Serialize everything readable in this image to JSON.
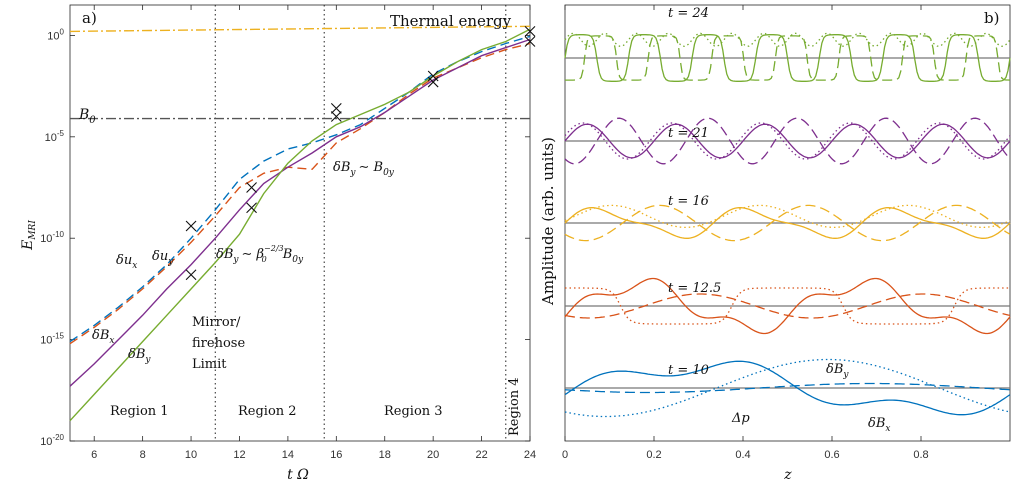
{
  "chart_data": [
    {
      "panel": "a)",
      "type": "line",
      "xlabel": "t Ω",
      "ylabel": "E_MRI",
      "xlim": [
        5,
        24
      ],
      "ylog": true,
      "ylim_log10": [
        -20,
        1.5
      ],
      "xticks": [
        "6",
        "8",
        "10",
        "12",
        "14",
        "16",
        "18",
        "20",
        "22",
        "24"
      ],
      "yticks": [
        {
          "label": "10^0",
          "base": "10",
          "exp": "0",
          "v": 0
        },
        {
          "label": "10^-5",
          "base": "10",
          "exp": "-5",
          "v": -5
        },
        {
          "label": "10^-10",
          "base": "10",
          "exp": "-10",
          "v": -10
        },
        {
          "label": "10^-15",
          "base": "10",
          "exp": "-15",
          "v": -15
        },
        {
          "label": "10^-20",
          "base": "10",
          "exp": "-20",
          "v": -20
        }
      ],
      "series": [
        {
          "name": "δu_x",
          "color": "#0072BD",
          "dash": "9,5",
          "x": [
            5,
            6,
            7,
            8,
            9,
            10,
            11,
            12,
            13,
            14,
            15,
            16,
            17,
            18,
            19,
            20,
            21,
            22,
            23,
            24
          ],
          "log10y": [
            -15.1,
            -14.3,
            -13.4,
            -12.4,
            -11.3,
            -10.0,
            -8.6,
            -7.1,
            -6.2,
            -5.6,
            -5.3,
            -4.9,
            -4.4,
            -3.6,
            -2.8,
            -1.9,
            -1.3,
            -0.8,
            -0.4,
            -0.05
          ]
        },
        {
          "name": "δu_y",
          "color": "#D95319",
          "dash": "9,5",
          "x": [
            5,
            6,
            7,
            8,
            9,
            10,
            11,
            12,
            13,
            14,
            15,
            16,
            17,
            18,
            19,
            20,
            21,
            22,
            23,
            24
          ],
          "log10y": [
            -15.2,
            -14.4,
            -13.5,
            -12.5,
            -11.4,
            -10.2,
            -8.9,
            -7.5,
            -6.8,
            -6.5,
            -6.6,
            -5.3,
            -4.6,
            -3.8,
            -2.9,
            -2.1,
            -1.6,
            -1.1,
            -0.7,
            -0.4
          ]
        },
        {
          "name": "δB_x",
          "color": "#7E2F8E",
          "dash": "",
          "x": [
            5,
            6,
            7,
            8,
            9,
            10,
            11,
            12,
            13,
            14,
            15,
            16,
            17,
            18,
            19,
            20,
            21,
            22,
            23,
            24
          ],
          "log10y": [
            -17.3,
            -16.2,
            -15.0,
            -13.8,
            -12.5,
            -11.3,
            -10.0,
            -8.6,
            -7.3,
            -6.5,
            -5.8,
            -5.0,
            -4.5,
            -3.8,
            -3.0,
            -2.2,
            -1.6,
            -1.0,
            -0.6,
            -0.2
          ]
        },
        {
          "name": "δB_y",
          "color": "#77AC30",
          "dash": "",
          "x": [
            5,
            6,
            7,
            8,
            9,
            10,
            11,
            12,
            13,
            14,
            15,
            16,
            17,
            18,
            19,
            20,
            21,
            22,
            23,
            24
          ],
          "log10y": [
            -19.0,
            -17.7,
            -16.4,
            -15.1,
            -13.8,
            -12.5,
            -11.2,
            -9.8,
            -7.8,
            -6.3,
            -5.2,
            -4.4,
            -3.9,
            -3.4,
            -2.8,
            -2.0,
            -1.3,
            -0.7,
            -0.3,
            0.3
          ]
        },
        {
          "name": "Thermal energy",
          "color": "#EDB120",
          "dash": "10,3,2,3",
          "x": [
            5,
            24
          ],
          "log10y": [
            0.2,
            0.45
          ]
        },
        {
          "name": "B_0",
          "color": "#555555",
          "dash": "10,3,2,3",
          "x": [
            5,
            24
          ],
          "log10y": [
            -4.1,
            -4.1
          ]
        }
      ],
      "markers": [
        [
          10,
          -9.4
        ],
        [
          10,
          -11.8
        ],
        [
          12.5,
          -7.5
        ],
        [
          12.5,
          -8.5
        ],
        [
          16,
          -3.6
        ],
        [
          16,
          -4.0
        ],
        [
          20,
          -2.0
        ],
        [
          20,
          -2.3
        ],
        [
          24,
          0.2
        ],
        [
          24,
          -0.3
        ]
      ],
      "vlines": [
        11,
        15.5,
        23
      ],
      "annotations": {
        "panel": "a)",
        "thermal": "Thermal energy",
        "b0": "B",
        "b0_sub": "0",
        "lab_ux": "δu",
        "lab_ux_sub": "x",
        "lab_uy": "δu",
        "lab_uy_sub": "y",
        "lab_bx": "δB",
        "lab_bx_sub": "x",
        "lab_by": "δB",
        "lab_by_sub": "y",
        "scaling1": "δB",
        "scaling1_sub": "y",
        "scaling1_rest": "∼ B",
        "scaling1_rest_sub": "0y",
        "scaling2": "δB",
        "scaling2_sub": "y",
        "scaling2_mid": "∼ β",
        "scaling2_sup": "−2/3",
        "scaling2_sub2": "0",
        "scaling2_end": "B",
        "scaling2_end_sub": "0y",
        "mirror_lines": [
          "Mirror/",
          "firehose",
          "Limit"
        ],
        "regions": [
          "Region 1",
          "Region 2",
          "Region 3",
          "Region 4"
        ]
      }
    },
    {
      "panel": "b)",
      "type": "line",
      "xlabel": "z",
      "ylabel": "Amplitude (arb. units)",
      "xlim": [
        0,
        1
      ],
      "xticks": [
        "0",
        "0.2",
        "0.4",
        "0.6",
        "0.8"
      ],
      "time_labels": [
        "t = 24",
        "t = 21",
        "t = 16",
        "t = 12.5",
        "t = 10"
      ],
      "colors": [
        "#77AC30",
        "#7E2F8E",
        "#EDB120",
        "#D95319",
        "#0072BD"
      ],
      "legend_labels": {
        "bx": "δB",
        "bx_sub": "x",
        "by": "δB",
        "by_sub": "y",
        "dp": "Δp"
      }
    }
  ]
}
